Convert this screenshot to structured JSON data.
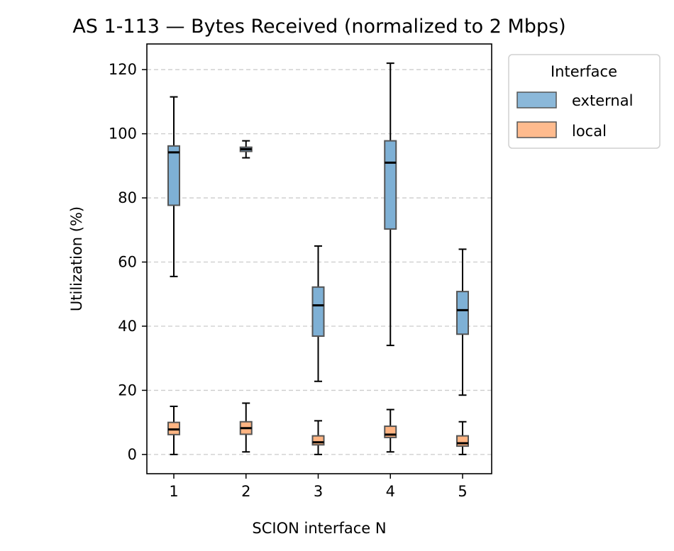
{
  "chart_data": {
    "type": "box",
    "title": "AS 1-113 — Bytes Received (normalized to 2 Mbps)",
    "xlabel": "SCION interface N",
    "ylabel": "Utilization (%)",
    "categories": [
      "1",
      "2",
      "3",
      "4",
      "5"
    ],
    "ylim": [
      -6,
      128
    ],
    "yticks": [
      0,
      20,
      40,
      60,
      80,
      100,
      120
    ],
    "y_tick_labels": [
      "0",
      "20",
      "40",
      "60",
      "80",
      "100",
      "120"
    ],
    "grid": "y-dashed",
    "legend": {
      "title": "Interface",
      "placement": "outside-top-right"
    },
    "series": [
      {
        "name": "external",
        "color": "#7eb0d5",
        "boxes": [
          {
            "category": "1",
            "whisker_low": 55.5,
            "q1": 77.7,
            "median": 94.2,
            "q3": 96.2,
            "whisker_high": 111.5
          },
          {
            "category": "2",
            "whisker_low": 92.5,
            "q1": 94.5,
            "median": 95.2,
            "q3": 95.8,
            "whisker_high": 97.8
          },
          {
            "category": "3",
            "whisker_low": 22.8,
            "q1": 36.9,
            "median": 46.5,
            "q3": 52.2,
            "whisker_high": 65.0
          },
          {
            "category": "4",
            "whisker_low": 34.0,
            "q1": 70.3,
            "median": 91.0,
            "q3": 97.8,
            "whisker_high": 122.0
          },
          {
            "category": "5",
            "whisker_low": 18.5,
            "q1": 37.5,
            "median": 45.0,
            "q3": 50.8,
            "whisker_high": 64.0
          }
        ]
      },
      {
        "name": "local",
        "color": "#ffb482",
        "boxes": [
          {
            "category": "1",
            "whisker_low": 0.0,
            "q1": 6.2,
            "median": 7.8,
            "q3": 10.0,
            "whisker_high": 15.0
          },
          {
            "category": "2",
            "whisker_low": 0.8,
            "q1": 6.3,
            "median": 8.2,
            "q3": 10.2,
            "whisker_high": 16.0
          },
          {
            "category": "3",
            "whisker_low": 0.0,
            "q1": 3.0,
            "median": 3.8,
            "q3": 5.8,
            "whisker_high": 10.5
          },
          {
            "category": "4",
            "whisker_low": 0.8,
            "q1": 5.3,
            "median": 6.2,
            "q3": 8.8,
            "whisker_high": 14.0
          },
          {
            "category": "5",
            "whisker_low": 0.0,
            "q1": 2.6,
            "median": 3.5,
            "q3": 5.8,
            "whisker_high": 10.2
          }
        ]
      }
    ]
  }
}
